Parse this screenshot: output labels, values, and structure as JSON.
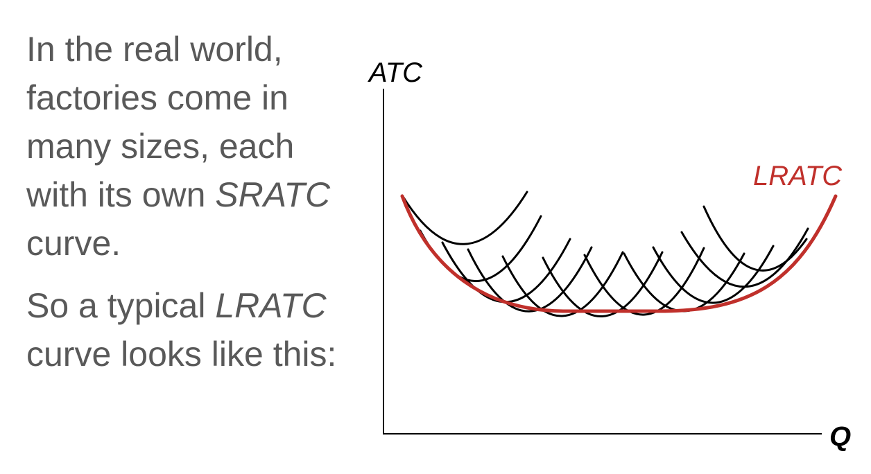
{
  "text": {
    "paragraph1": [
      {
        "text": "In the real world, factories come in many sizes, each with its own ",
        "italic": false
      },
      {
        "text": "SRATC",
        "italic": true
      },
      {
        "text": " curve.",
        "italic": false
      }
    ],
    "paragraph2": [
      {
        "text": "So a typical ",
        "italic": false
      },
      {
        "text": "LRATC",
        "italic": true
      },
      {
        "text": " curve looks like this:",
        "italic": false
      }
    ]
  },
  "diagram": {
    "y_axis_label": "ATC",
    "x_axis_label": "Q",
    "lratc_label": "LRATC",
    "colors": {
      "lratc": "#c0302b",
      "sratc": "#000000",
      "axis": "#000000",
      "text": "#595959"
    }
  }
}
